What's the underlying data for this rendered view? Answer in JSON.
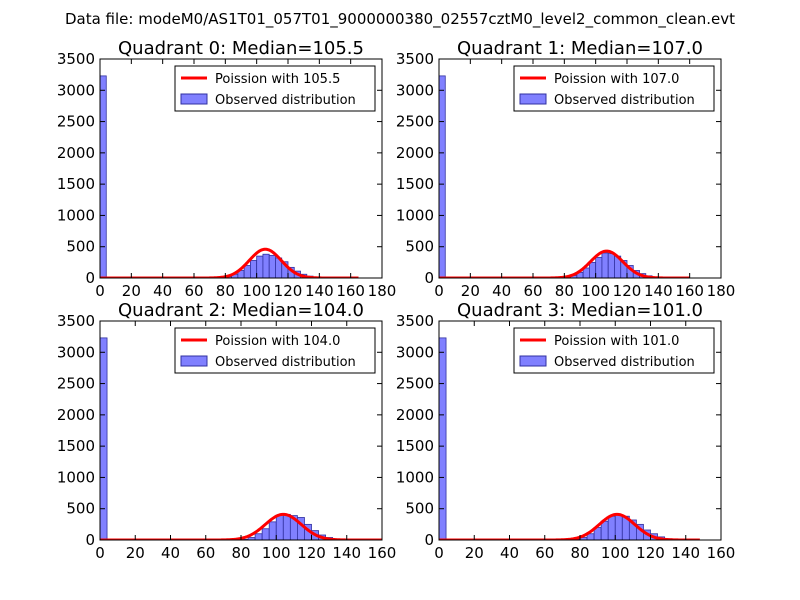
{
  "suptitle": "Data file: modeM0/AS1T01_057T01_9000000380_02557cztM0_level2_common_clean.evt",
  "colors": {
    "bar_fill": "#8080ff",
    "bar_edge": "#3030a0",
    "fit_line": "#ff0000",
    "axis": "#000000"
  },
  "chart_data": [
    {
      "type": "bar",
      "title": "Quadrant 0: Median=105.5",
      "legend": [
        "Poission with 105.5",
        "Observed distribution"
      ],
      "legend_position": "top-right",
      "xlim": [
        0,
        180
      ],
      "ylim": [
        0,
        3500
      ],
      "xticks": [
        "0",
        "20",
        "40",
        "60",
        "80",
        "100",
        "120",
        "140",
        "160",
        "180"
      ],
      "yticks": [
        "0",
        "500",
        "1000",
        "1500",
        "2000",
        "2500",
        "3000",
        "3500"
      ],
      "bin_width": 4,
      "bins": [
        [
          0,
          3230
        ],
        [
          76,
          5
        ],
        [
          80,
          20
        ],
        [
          84,
          60
        ],
        [
          88,
          120
        ],
        [
          92,
          200
        ],
        [
          96,
          280
        ],
        [
          100,
          350
        ],
        [
          104,
          380
        ],
        [
          108,
          360
        ],
        [
          112,
          320
        ],
        [
          116,
          260
        ],
        [
          120,
          170
        ],
        [
          124,
          110
        ],
        [
          128,
          60
        ],
        [
          132,
          30
        ],
        [
          136,
          12
        ],
        [
          140,
          5
        ]
      ],
      "poisson_mean": 105.5,
      "poisson_peak": 460,
      "curve_range": [
        0,
        165
      ]
    },
    {
      "type": "bar",
      "title": "Quadrant 1: Median=107.0",
      "legend": [
        "Poission with 107.0",
        "Observed distribution"
      ],
      "legend_position": "top-right",
      "xlim": [
        0,
        180
      ],
      "ylim": [
        0,
        3500
      ],
      "xticks": [
        "0",
        "20",
        "40",
        "60",
        "80",
        "100",
        "120",
        "140",
        "160",
        "180"
      ],
      "yticks": [
        "0",
        "500",
        "1000",
        "1500",
        "2000",
        "2500",
        "3000",
        "3500"
      ],
      "bin_width": 4,
      "bins": [
        [
          0,
          3230
        ],
        [
          80,
          10
        ],
        [
          84,
          40
        ],
        [
          88,
          90
        ],
        [
          92,
          160
        ],
        [
          96,
          250
        ],
        [
          100,
          330
        ],
        [
          104,
          400
        ],
        [
          108,
          390
        ],
        [
          112,
          350
        ],
        [
          116,
          280
        ],
        [
          120,
          200
        ],
        [
          124,
          120
        ],
        [
          128,
          70
        ],
        [
          132,
          35
        ],
        [
          136,
          15
        ],
        [
          140,
          6
        ]
      ],
      "poisson_mean": 107.0,
      "poisson_peak": 430,
      "curve_range": [
        0,
        160
      ]
    },
    {
      "type": "bar",
      "title": "Quadrant 2: Median=104.0",
      "legend": [
        "Poission with 104.0",
        "Observed distribution"
      ],
      "legend_position": "top-right",
      "xlim": [
        0,
        160
      ],
      "ylim": [
        0,
        3500
      ],
      "xticks": [
        "0",
        "20",
        "40",
        "60",
        "80",
        "100",
        "120",
        "140",
        "160"
      ],
      "yticks": [
        "0",
        "500",
        "1000",
        "1500",
        "2000",
        "2500",
        "3000",
        "3500"
      ],
      "bin_width": 4,
      "bins": [
        [
          0,
          3230
        ],
        [
          80,
          10
        ],
        [
          84,
          40
        ],
        [
          88,
          100
        ],
        [
          92,
          180
        ],
        [
          96,
          290
        ],
        [
          100,
          400
        ],
        [
          104,
          410
        ],
        [
          108,
          390
        ],
        [
          112,
          360
        ],
        [
          116,
          250
        ],
        [
          120,
          150
        ],
        [
          124,
          80
        ],
        [
          128,
          40
        ],
        [
          132,
          15
        ],
        [
          136,
          6
        ]
      ],
      "poisson_mean": 104.0,
      "poisson_peak": 410,
      "curve_range": [
        0,
        160
      ]
    },
    {
      "type": "bar",
      "title": "Quadrant 3: Median=101.0",
      "legend": [
        "Poission with 101.0",
        "Observed distribution"
      ],
      "legend_position": "top-right",
      "xlim": [
        0,
        160
      ],
      "ylim": [
        0,
        3500
      ],
      "xticks": [
        "0",
        "20",
        "40",
        "60",
        "80",
        "100",
        "120",
        "140",
        "160"
      ],
      "yticks": [
        "0",
        "500",
        "1000",
        "1500",
        "2000",
        "2500",
        "3000",
        "3500"
      ],
      "bin_width": 4,
      "bins": [
        [
          0,
          3230
        ],
        [
          76,
          10
        ],
        [
          80,
          40
        ],
        [
          84,
          100
        ],
        [
          88,
          200
        ],
        [
          92,
          300
        ],
        [
          96,
          380
        ],
        [
          100,
          400
        ],
        [
          104,
          380
        ],
        [
          108,
          320
        ],
        [
          112,
          250
        ],
        [
          116,
          160
        ],
        [
          120,
          100
        ],
        [
          124,
          50
        ],
        [
          128,
          20
        ],
        [
          132,
          8
        ]
      ],
      "poisson_mean": 101.0,
      "poisson_peak": 410,
      "curve_range": [
        0,
        148
      ]
    }
  ]
}
